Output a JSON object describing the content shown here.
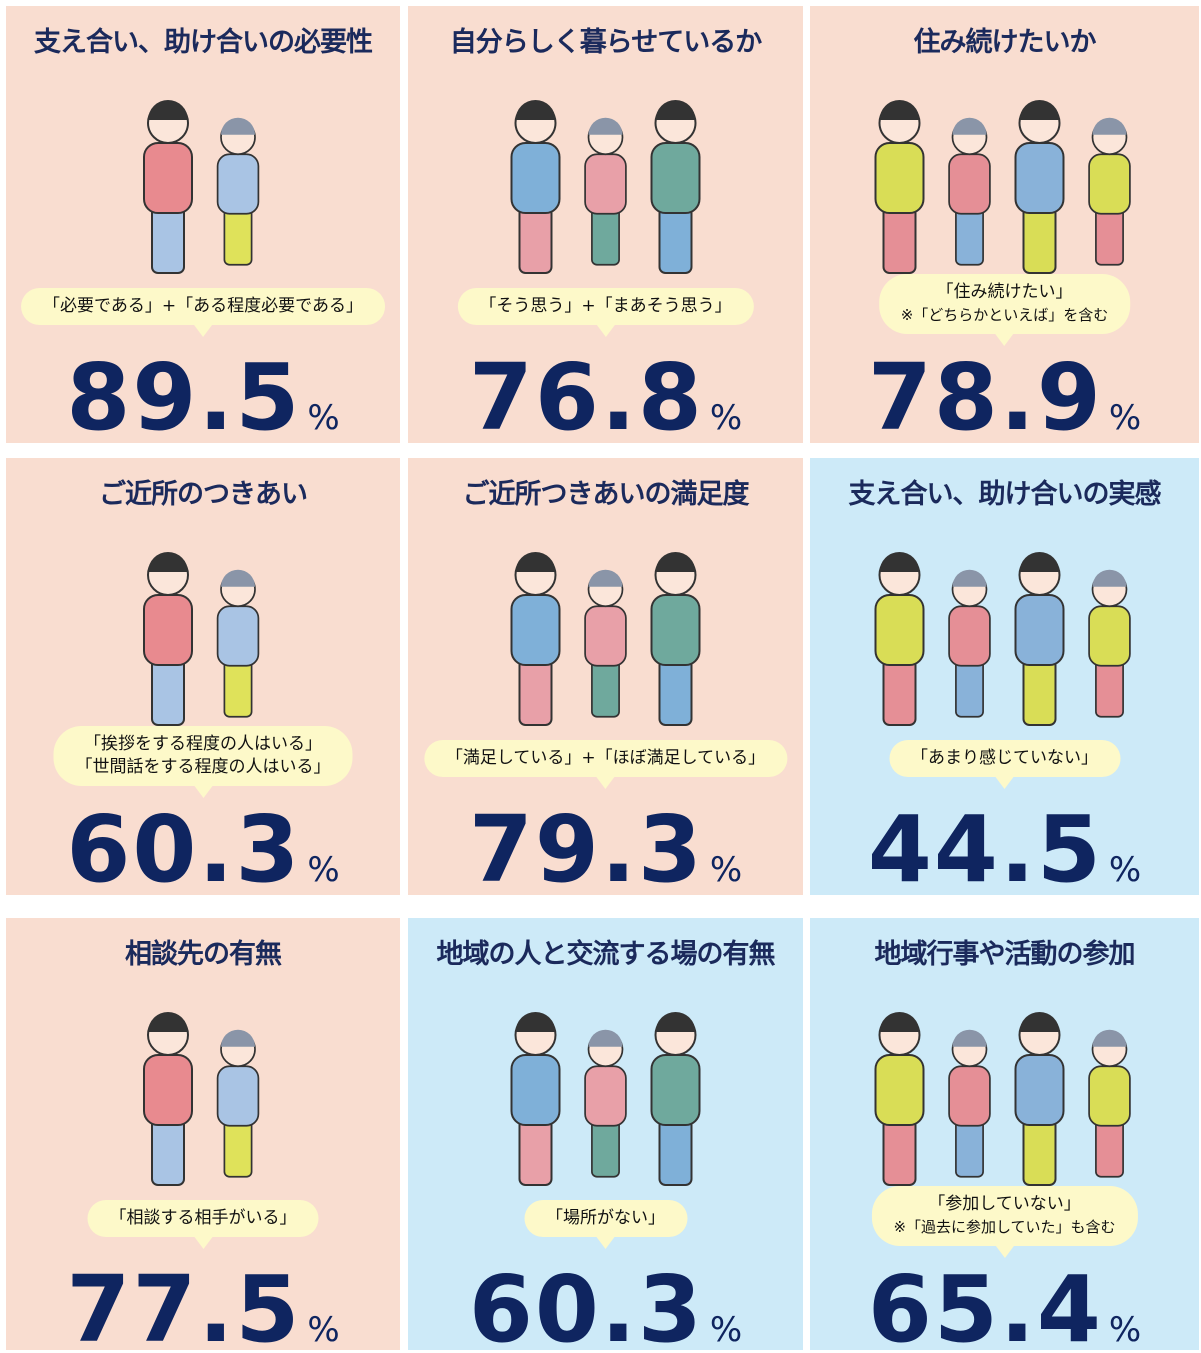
{
  "cards": [
    {
      "title": "支え合い、助け合いの必要性",
      "caption": [
        "「必要である」+「ある程度必要である」"
      ],
      "value": 89.5,
      "unit": "%",
      "background": "#f9ddd0"
    },
    {
      "title": "自分らしく暮らせているか",
      "caption": [
        "「そう思う」+「まあそう思う」"
      ],
      "value": 76.8,
      "unit": "%",
      "background": "#f9ddd0"
    },
    {
      "title": "住み続けたいか",
      "caption": [
        "「住み続けたい」",
        "※「どちらかといえば」を含む"
      ],
      "value": 78.9,
      "unit": "%",
      "background": "#f9ddd0"
    },
    {
      "title": "ご近所のつきあい",
      "caption": [
        "「挨拶をする程度の人はいる」",
        "「世間話をする程度の人はいる」"
      ],
      "value": 60.3,
      "unit": "%",
      "background": "#f9ddd0"
    },
    {
      "title": "ご近所つきあいの満足度",
      "caption": [
        "「満足している」+「ほぼ満足している」"
      ],
      "value": 79.3,
      "unit": "%",
      "background": "#f9ddd0"
    },
    {
      "title": "支え合い、助け合いの実感",
      "caption": [
        "「あまり感じていない」"
      ],
      "value": 44.5,
      "unit": "%",
      "background": "#cdeaf8"
    },
    {
      "title": "相談先の有無",
      "caption": [
        "「相談する相手がいる」"
      ],
      "value": 77.5,
      "unit": "%",
      "background": "#f9ddd0"
    },
    {
      "title": "地域の人と交流する場の有無",
      "caption": [
        "「場所がない」"
      ],
      "value": 60.3,
      "unit": "%",
      "background": "#cdeaf8"
    },
    {
      "title": "地域行事や活動の参加",
      "caption": [
        "「参加していない」",
        "※「過去に参加していた」も含む"
      ],
      "value": 65.4,
      "unit": "%",
      "background": "#cdeaf8"
    }
  ]
}
